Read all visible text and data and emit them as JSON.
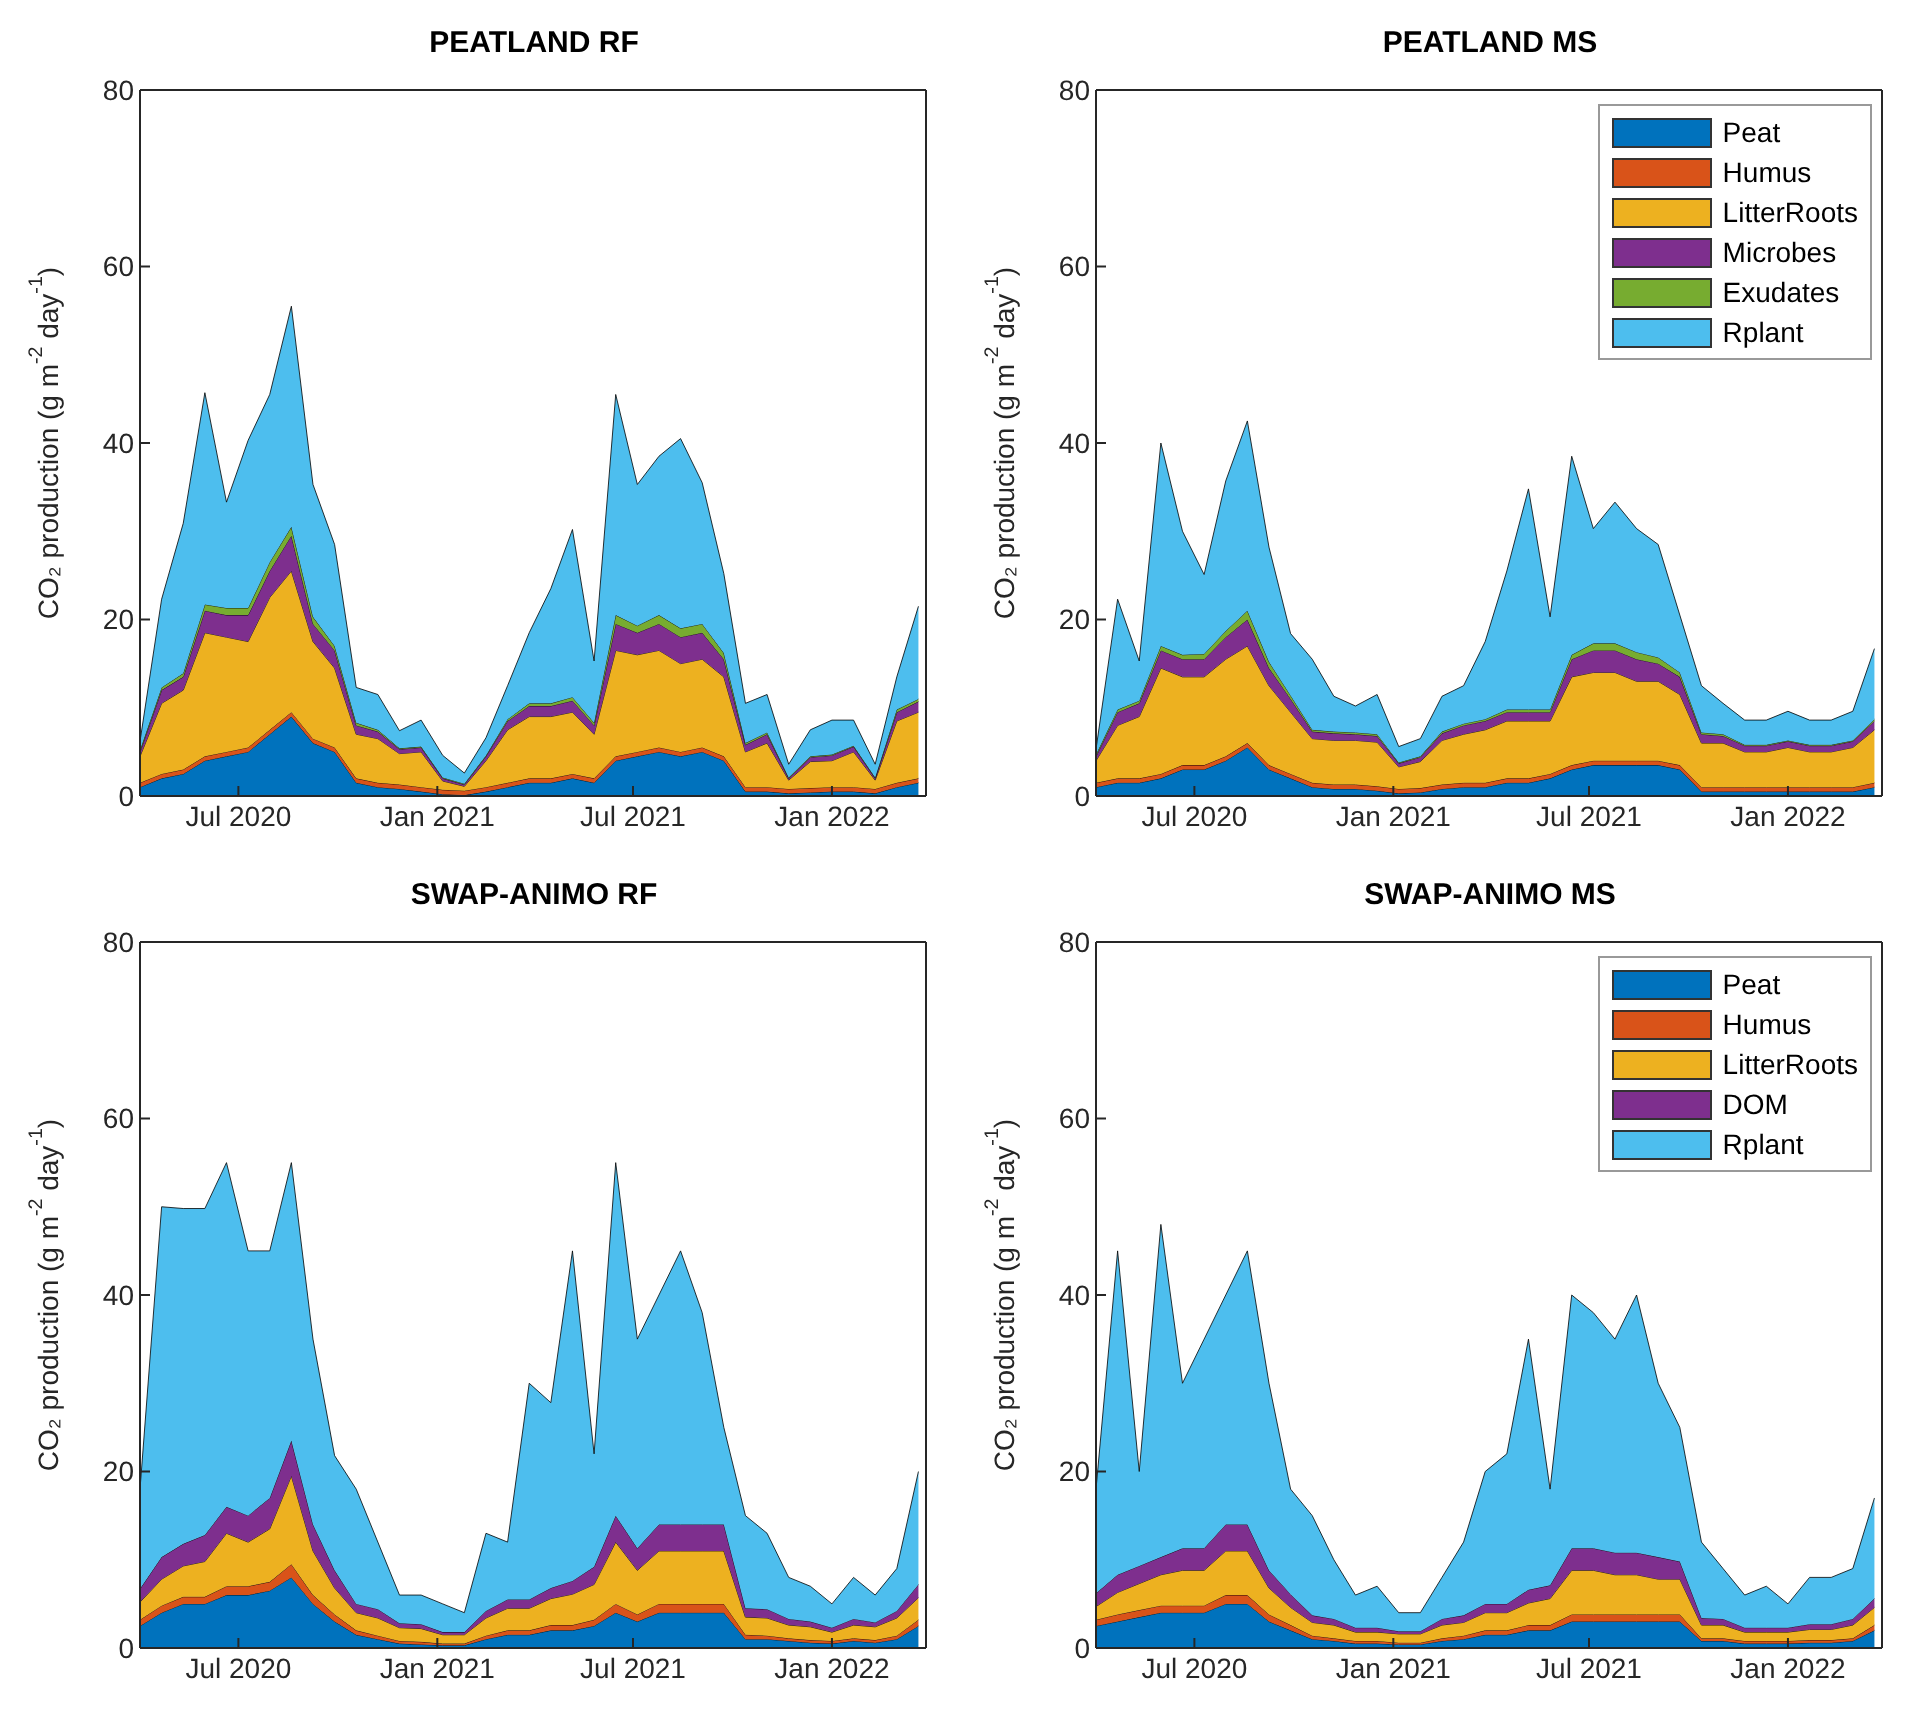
{
  "chart_data": [
    {
      "type": "area",
      "title": "PEATLAND RF",
      "ylabel": "CO₂ production (g m$^{-2}$ day$^{-1}$)",
      "stacked": true,
      "legend": false,
      "x": [
        "2020-04-01",
        "2020-04-21",
        "2020-05-11",
        "2020-05-31",
        "2020-06-20",
        "2020-07-10",
        "2020-07-30",
        "2020-08-19",
        "2020-09-08",
        "2020-09-28",
        "2020-10-18",
        "2020-11-07",
        "2020-11-27",
        "2020-12-17",
        "2021-01-06",
        "2021-01-26",
        "2021-02-15",
        "2021-03-07",
        "2021-03-27",
        "2021-04-16",
        "2021-05-06",
        "2021-05-26",
        "2021-06-15",
        "2021-07-05",
        "2021-07-25",
        "2021-08-14",
        "2021-09-03",
        "2021-09-23",
        "2021-10-13",
        "2021-11-02",
        "2021-11-22",
        "2021-12-12",
        "2022-01-01",
        "2022-01-21",
        "2022-02-10",
        "2022-03-02",
        "2022-03-22"
      ],
      "xlim": [
        "2020-04-01",
        "2022-03-29"
      ],
      "xticks": [
        {
          "value": "2020-07-01",
          "label": "Jul 2020"
        },
        {
          "value": "2021-01-01",
          "label": "Jan 2021"
        },
        {
          "value": "2021-07-01",
          "label": "Jul 2021"
        },
        {
          "value": "2022-01-01",
          "label": "Jan 2022"
        }
      ],
      "ylim": [
        0,
        80
      ],
      "yticks": [
        0,
        20,
        40,
        60,
        80
      ],
      "series": [
        {
          "color": "#0072bd",
          "values": [
            1,
            2,
            2.5,
            4,
            4.5,
            5,
            7,
            9,
            6,
            5,
            1.5,
            1,
            0.8,
            0.5,
            0.2,
            0.1,
            0.5,
            1,
            1.5,
            1.5,
            2,
            1.5,
            4,
            4.5,
            5,
            4.5,
            5,
            4,
            0.5,
            0.5,
            0.3,
            0.4,
            0.5,
            0.5,
            0.3,
            1,
            1.5
          ]
        },
        {
          "color": "#d95319",
          "values": [
            0.5,
            0.5,
            0.5,
            0.5,
            0.5,
            0.5,
            0.5,
            0.5,
            0.5,
            0.5,
            0.5,
            0.5,
            0.5,
            0.5,
            0.5,
            0.5,
            0.5,
            0.5,
            0.5,
            0.5,
            0.5,
            0.5,
            0.5,
            0.5,
            0.5,
            0.5,
            0.5,
            0.5,
            0.5,
            0.5,
            0.5,
            0.5,
            0.5,
            0.5,
            0.5,
            0.5,
            0.5
          ]
        },
        {
          "color": "#edb120",
          "values": [
            3,
            8,
            9,
            14,
            13,
            12,
            15,
            16,
            11,
            9,
            5,
            5,
            3.5,
            4,
            1,
            0.5,
            3,
            6,
            7,
            7,
            7,
            5,
            12,
            11,
            11,
            10,
            10,
            9,
            4,
            5,
            1,
            3,
            3,
            4,
            1,
            7,
            7.5
          ]
        },
        {
          "color": "#7e2f8e",
          "values": [
            0.5,
            1.5,
            1.5,
            2.5,
            2.5,
            3,
            3,
            4,
            2,
            2,
            1,
            0.8,
            0.5,
            0.5,
            0.3,
            0.2,
            0.5,
            1,
            1.2,
            1.2,
            1.3,
            1,
            3,
            2.5,
            3,
            3,
            3,
            2,
            0.8,
            1,
            0.2,
            0.5,
            0.6,
            0.6,
            0.2,
            1,
            1.2
          ]
        },
        {
          "color": "#77ac30",
          "values": [
            0.2,
            0.3,
            0.4,
            0.7,
            0.8,
            0.8,
            1,
            1,
            0.8,
            0.5,
            0.3,
            0.2,
            0.1,
            0.1,
            0.1,
            0.1,
            0.1,
            0.2,
            0.3,
            0.3,
            0.4,
            0.3,
            1,
            0.8,
            1,
            1,
            1,
            0.7,
            0.2,
            0.2,
            0.1,
            0.1,
            0.1,
            0.1,
            0.1,
            0.3,
            0.3
          ]
        },
        {
          "color": "#4dbeee",
          "values": [
            1,
            10,
            17,
            24,
            12,
            19,
            19,
            25,
            15,
            11.5,
            4,
            4,
            2,
            3,
            2.5,
            1.2,
            2,
            3.8,
            8,
            13,
            19,
            7,
            25,
            16,
            18,
            21.5,
            16,
            9,
            4.5,
            4.3,
            1.5,
            3,
            3.9,
            2.9,
            1.5,
            3.7,
            10.5
          ]
        }
      ]
    },
    {
      "type": "area",
      "title": "PEATLAND MS",
      "ylabel": "CO₂ production (g m$^{-2}$ day$^{-1}$)",
      "stacked": true,
      "legend": "top right",
      "x": [
        "2020-04-01",
        "2020-04-21",
        "2020-05-11",
        "2020-05-31",
        "2020-06-20",
        "2020-07-10",
        "2020-07-30",
        "2020-08-19",
        "2020-09-08",
        "2020-09-28",
        "2020-10-18",
        "2020-11-07",
        "2020-11-27",
        "2020-12-17",
        "2021-01-06",
        "2021-01-26",
        "2021-02-15",
        "2021-03-07",
        "2021-03-27",
        "2021-04-16",
        "2021-05-06",
        "2021-05-26",
        "2021-06-15",
        "2021-07-05",
        "2021-07-25",
        "2021-08-14",
        "2021-09-03",
        "2021-09-23",
        "2021-10-13",
        "2021-11-02",
        "2021-11-22",
        "2021-12-12",
        "2022-01-01",
        "2022-01-21",
        "2022-02-10",
        "2022-03-02",
        "2022-03-22"
      ],
      "xlim": [
        "2020-04-01",
        "2022-03-29"
      ],
      "xticks": [
        {
          "value": "2020-07-01",
          "label": "Jul 2020"
        },
        {
          "value": "2021-01-01",
          "label": "Jan 2021"
        },
        {
          "value": "2021-07-01",
          "label": "Jul 2021"
        },
        {
          "value": "2022-01-01",
          "label": "Jan 2022"
        }
      ],
      "ylim": [
        0,
        80
      ],
      "yticks": [
        0,
        20,
        40,
        60,
        80
      ],
      "series": [
        {
          "name": "Peat",
          "color": "#0072bd",
          "values": [
            1,
            1.5,
            1.5,
            2,
            3,
            3,
            4,
            5.5,
            3,
            2,
            1,
            0.8,
            0.8,
            0.6,
            0.3,
            0.4,
            0.8,
            1,
            1,
            1.5,
            1.5,
            2,
            3,
            3.5,
            3.5,
            3.5,
            3.5,
            3,
            0.5,
            0.5,
            0.5,
            0.5,
            0.5,
            0.5,
            0.5,
            0.5,
            1
          ]
        },
        {
          "name": "Humus",
          "color": "#d95319",
          "values": [
            0.5,
            0.5,
            0.5,
            0.5,
            0.5,
            0.5,
            0.5,
            0.5,
            0.5,
            0.5,
            0.5,
            0.5,
            0.5,
            0.5,
            0.5,
            0.5,
            0.5,
            0.5,
            0.5,
            0.5,
            0.5,
            0.5,
            0.5,
            0.5,
            0.5,
            0.5,
            0.5,
            0.5,
            0.5,
            0.5,
            0.5,
            0.5,
            0.5,
            0.5,
            0.5,
            0.5,
            0.5
          ]
        },
        {
          "name": "LitterRoots",
          "color": "#edb120",
          "values": [
            2.5,
            6,
            7,
            12,
            10,
            10,
            11,
            11,
            9,
            7,
            5,
            5,
            5,
            5,
            2.5,
            3,
            5,
            5.5,
            6,
            6.5,
            6.5,
            6,
            10,
            10,
            10,
            9,
            9,
            8,
            5,
            5,
            4,
            4,
            4.5,
            4,
            4,
            4.5,
            6
          ]
        },
        {
          "name": "Microbes",
          "color": "#7e2f8e",
          "values": [
            0.5,
            1.5,
            1.5,
            2,
            2,
            2,
            2.5,
            3,
            2,
            1.5,
            0.8,
            0.8,
            0.7,
            0.7,
            0.4,
            0.5,
            0.8,
            1,
            1,
            1,
            1,
            1,
            2,
            2.5,
            2.5,
            2.5,
            2,
            2,
            1,
            0.8,
            0.7,
            0.7,
            0.7,
            0.7,
            0.7,
            0.7,
            1
          ]
        },
        {
          "name": "Exudates",
          "color": "#77ac30",
          "values": [
            0.2,
            0.3,
            0.3,
            0.5,
            0.5,
            0.6,
            0.7,
            1,
            0.7,
            0.4,
            0.2,
            0.2,
            0.2,
            0.2,
            0.1,
            0.1,
            0.2,
            0.2,
            0.2,
            0.3,
            0.3,
            0.3,
            0.5,
            0.8,
            0.8,
            0.8,
            0.7,
            0.5,
            0.2,
            0.2,
            0.1,
            0.1,
            0.1,
            0.1,
            0.1,
            0.1,
            0.2
          ]
        },
        {
          "name": "Rplant",
          "color": "#4dbeee",
          "values": [
            0.6,
            12.5,
            4.5,
            23,
            14,
            9,
            17,
            21.5,
            13,
            7,
            8,
            4,
            3,
            4.5,
            1.8,
            2,
            4,
            4.3,
            8.8,
            15.7,
            25,
            10.5,
            22.5,
            13,
            16,
            14,
            12.8,
            6.5,
            5.3,
            3.5,
            2.8,
            2.8,
            3.3,
            2.8,
            2.8,
            3.3,
            8
          ]
        }
      ]
    },
    {
      "type": "area",
      "title": "SWAP-ANIMO RF",
      "ylabel": "CO₂ production (g m$^{-2}$ day$^{-1}$)",
      "stacked": true,
      "legend": false,
      "x": [
        "2020-04-01",
        "2020-04-21",
        "2020-05-11",
        "2020-05-31",
        "2020-06-20",
        "2020-07-10",
        "2020-07-30",
        "2020-08-19",
        "2020-09-08",
        "2020-09-28",
        "2020-10-18",
        "2020-11-07",
        "2020-11-27",
        "2020-12-17",
        "2021-01-06",
        "2021-01-26",
        "2021-02-15",
        "2021-03-07",
        "2021-03-27",
        "2021-04-16",
        "2021-05-06",
        "2021-05-26",
        "2021-06-15",
        "2021-07-05",
        "2021-07-25",
        "2021-08-14",
        "2021-09-03",
        "2021-09-23",
        "2021-10-13",
        "2021-11-02",
        "2021-11-22",
        "2021-12-12",
        "2022-01-01",
        "2022-01-21",
        "2022-02-10",
        "2022-03-02",
        "2022-03-22"
      ],
      "xlim": [
        "2020-04-01",
        "2022-03-29"
      ],
      "xticks": [
        {
          "value": "2020-07-01",
          "label": "Jul 2020"
        },
        {
          "value": "2021-01-01",
          "label": "Jan 2021"
        },
        {
          "value": "2021-07-01",
          "label": "Jul 2021"
        },
        {
          "value": "2022-01-01",
          "label": "Jan 2022"
        }
      ],
      "ylim": [
        0,
        80
      ],
      "yticks": [
        0,
        20,
        40,
        60,
        80
      ],
      "series": [
        {
          "color": "#0072bd",
          "values": [
            2.5,
            4,
            5,
            5,
            6,
            6,
            6.5,
            8,
            5,
            3,
            1.5,
            1,
            0.5,
            0.4,
            0.3,
            0.3,
            1,
            1.5,
            1.5,
            2,
            2,
            2.5,
            4,
            3,
            4,
            4,
            4,
            4,
            1,
            1,
            0.8,
            0.6,
            0.5,
            0.8,
            0.6,
            1,
            2.5
          ]
        },
        {
          "color": "#d95319",
          "values": [
            0.7,
            0.8,
            0.8,
            0.8,
            1,
            1,
            1,
            1.5,
            1,
            0.8,
            0.5,
            0.4,
            0.3,
            0.3,
            0.2,
            0.2,
            0.4,
            0.5,
            0.5,
            0.6,
            0.6,
            0.7,
            1,
            0.8,
            1,
            1,
            1,
            1,
            0.5,
            0.4,
            0.3,
            0.3,
            0.3,
            0.3,
            0.3,
            0.4,
            0.7
          ]
        },
        {
          "color": "#edb120",
          "values": [
            2,
            3,
            3.5,
            4,
            6,
            5,
            6,
            10,
            5,
            3,
            2,
            2,
            1.5,
            1.5,
            1,
            1,
            2,
            2.5,
            2.5,
            3,
            3.5,
            4,
            7,
            5,
            6,
            6,
            6,
            6,
            2,
            2,
            1.5,
            1.5,
            1,
            1.5,
            1.5,
            2,
            2.5
          ]
        },
        {
          "color": "#7e2f8e",
          "values": [
            1.5,
            2.5,
            2.5,
            3,
            3,
            3,
            3.5,
            4,
            3,
            2,
            1,
            1,
            0.5,
            0.5,
            0.3,
            0.3,
            0.8,
            1,
            1,
            1.2,
            1.5,
            2,
            3,
            2.5,
            3,
            3,
            3,
            3,
            1,
            1,
            0.7,
            0.6,
            0.5,
            0.7,
            0.5,
            0.8,
            1.5
          ]
        },
        {
          "color": "#4dbeee",
          "values": [
            11.3,
            39.7,
            38,
            37,
            39,
            30,
            28,
            31.5,
            21,
            13,
            13,
            7.6,
            3.2,
            3.3,
            3.2,
            2.2,
            8.8,
            6.5,
            24.5,
            21,
            37.4,
            12.8,
            40,
            23.7,
            26,
            31,
            24,
            11,
            10.5,
            8.6,
            4.7,
            4,
            2.7,
            4.7,
            3.1,
            4.8,
            12.8
          ]
        }
      ]
    },
    {
      "type": "area",
      "title": "SWAP-ANIMO MS",
      "ylabel": "CO₂ production (g m$^{-2}$ day$^{-1}$)",
      "stacked": true,
      "legend": "top right",
      "x": [
        "2020-04-01",
        "2020-04-21",
        "2020-05-11",
        "2020-05-31",
        "2020-06-20",
        "2020-07-10",
        "2020-07-30",
        "2020-08-19",
        "2020-09-08",
        "2020-09-28",
        "2020-10-18",
        "2020-11-07",
        "2020-11-27",
        "2020-12-17",
        "2021-01-06",
        "2021-01-26",
        "2021-02-15",
        "2021-03-07",
        "2021-03-27",
        "2021-04-16",
        "2021-05-06",
        "2021-05-26",
        "2021-06-15",
        "2021-07-05",
        "2021-07-25",
        "2021-08-14",
        "2021-09-03",
        "2021-09-23",
        "2021-10-13",
        "2021-11-02",
        "2021-11-22",
        "2021-12-12",
        "2022-01-01",
        "2022-01-21",
        "2022-02-10",
        "2022-03-02",
        "2022-03-22"
      ],
      "xlim": [
        "2020-04-01",
        "2022-03-29"
      ],
      "xticks": [
        {
          "value": "2020-07-01",
          "label": "Jul 2020"
        },
        {
          "value": "2021-01-01",
          "label": "Jan 2021"
        },
        {
          "value": "2021-07-01",
          "label": "Jul 2021"
        },
        {
          "value": "2022-01-01",
          "label": "Jan 2022"
        }
      ],
      "ylim": [
        0,
        80
      ],
      "yticks": [
        0,
        20,
        40,
        60,
        80
      ],
      "series": [
        {
          "name": "Peat",
          "color": "#0072bd",
          "values": [
            2.5,
            3,
            3.5,
            4,
            4,
            4,
            5,
            5,
            3,
            2,
            1,
            0.8,
            0.5,
            0.5,
            0.4,
            0.4,
            0.8,
            1,
            1.5,
            1.5,
            2,
            2,
            3,
            3,
            3,
            3,
            3,
            3,
            0.8,
            0.8,
            0.5,
            0.5,
            0.5,
            0.6,
            0.6,
            0.8,
            2
          ]
        },
        {
          "name": "Humus",
          "color": "#d95319",
          "values": [
            0.7,
            0.8,
            0.8,
            0.8,
            0.8,
            0.8,
            1,
            1,
            0.8,
            0.6,
            0.4,
            0.3,
            0.3,
            0.3,
            0.2,
            0.2,
            0.3,
            0.4,
            0.5,
            0.5,
            0.6,
            0.6,
            0.8,
            0.8,
            0.8,
            0.8,
            0.8,
            0.8,
            0.3,
            0.3,
            0.3,
            0.3,
            0.3,
            0.3,
            0.3,
            0.3,
            0.6
          ]
        },
        {
          "name": "LitterRoots",
          "color": "#edb120",
          "values": [
            1.5,
            2.5,
            3,
            3.5,
            4,
            4,
            5,
            5,
            3,
            2,
            1.5,
            1.5,
            1,
            1,
            1,
            1,
            1.5,
            1.5,
            2,
            2,
            2.5,
            3,
            5,
            5,
            4.5,
            4.5,
            4,
            4,
            1.5,
            1.5,
            1,
            1,
            1,
            1.2,
            1.2,
            1.5,
            2
          ]
        },
        {
          "name": "DOM",
          "color": "#7e2f8e",
          "values": [
            1.5,
            2,
            2,
            2,
            2.5,
            2.5,
            3,
            3,
            2,
            1.5,
            0.8,
            0.7,
            0.5,
            0.5,
            0.3,
            0.3,
            0.7,
            0.8,
            1,
            1,
            1.5,
            1.5,
            2.5,
            2.5,
            2.5,
            2.5,
            2.5,
            2,
            0.8,
            0.7,
            0.5,
            0.5,
            0.5,
            0.6,
            0.6,
            0.7,
            1
          ]
        },
        {
          "name": "Rplant",
          "color": "#4dbeee",
          "values": [
            11.8,
            36.7,
            10.7,
            37.7,
            18.7,
            23.7,
            26,
            31,
            21.2,
            11.9,
            11.3,
            6.7,
            3.7,
            4.7,
            2.1,
            2.1,
            4.7,
            8.3,
            15,
            17,
            28.4,
            10.9,
            28.7,
            26.7,
            24.2,
            29.2,
            19.7,
            15.2,
            8.6,
            5.7,
            3.7,
            4.7,
            2.7,
            5.3,
            5.3,
            5.7,
            11.4
          ]
        }
      ]
    }
  ]
}
